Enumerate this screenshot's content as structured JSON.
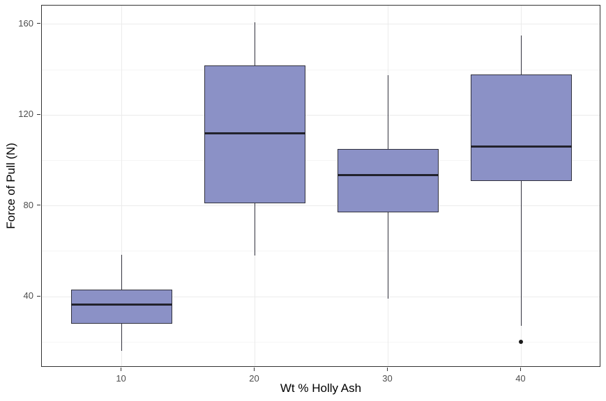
{
  "chart_data": {
    "type": "boxplot",
    "title": "",
    "xlabel": "Wt % Holly Ash",
    "ylabel": "Force of Pull (N)",
    "categories": [
      "10",
      "20",
      "30",
      "40"
    ],
    "ylim": [
      8.75,
      168.25
    ],
    "y_major_ticks": [
      40,
      80,
      120,
      160
    ],
    "y_minor_gridlines": [
      20,
      60,
      100,
      140
    ],
    "grid": "horizontal major+minor gridlines, vertical major gridline at each category center",
    "legend_position": "none",
    "boxes": [
      {
        "category": "10",
        "whisker_low": 16,
        "q1": 28,
        "median": 36.5,
        "q3": 43,
        "whisker_high": 58.5,
        "outliers": []
      },
      {
        "category": "20",
        "whisker_low": 58,
        "q1": 81,
        "median": 112,
        "q3": 142,
        "whisker_high": 161,
        "outliers": []
      },
      {
        "category": "30",
        "whisker_low": 39,
        "q1": 77,
        "median": 93.5,
        "q3": 105,
        "whisker_high": 137.5,
        "outliers": []
      },
      {
        "category": "40",
        "whisker_low": 27,
        "q1": 91,
        "median": 106,
        "q3": 138,
        "whisker_high": 155,
        "outliers": [
          20
        ]
      }
    ],
    "colors": {
      "box_fill": "#8b91c6",
      "box_border": "#31313d",
      "median_line": "#22222c",
      "whisker": "#31313d",
      "outlier": "#1a1a1a",
      "panel_border": "#333333",
      "grid_major": "#ebebeb",
      "grid_minor": "#f5f5f5",
      "tick_mark": "#333333",
      "tick_text": "#4d4d4d",
      "axis_title_text": "#000000",
      "background": "#ffffff"
    }
  }
}
